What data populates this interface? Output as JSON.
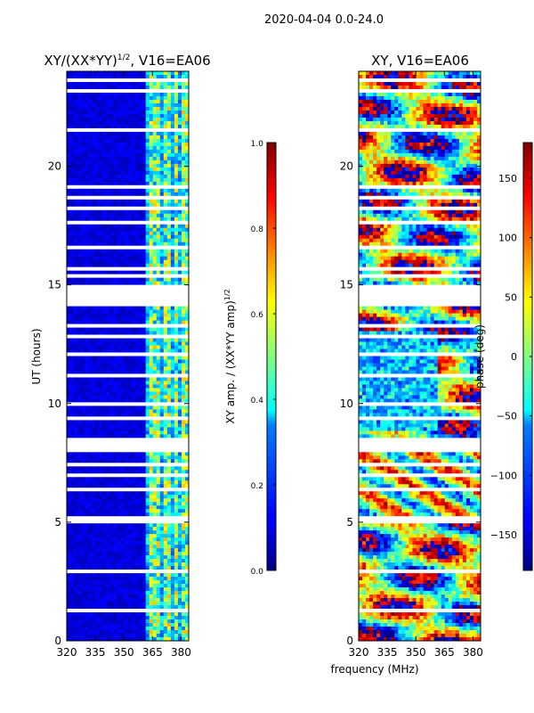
{
  "suptitle": "2020-04-04 0.0-24.0",
  "xlabel_shared": "frequency (MHz)",
  "chart_data": [
    {
      "type": "heatmap",
      "panel": "amplitude",
      "title": "XY/(XX*YY)",
      "title_sup": "1/2",
      "title_suffix": ", V16=EA06",
      "ylabel": "UT (hours)",
      "xlim": [
        320,
        384
      ],
      "ylim": [
        0,
        24
      ],
      "xticks": [
        320,
        335,
        350,
        365,
        380
      ],
      "yticks": [
        0,
        5,
        10,
        15,
        20
      ],
      "colormap": "jet",
      "colorbar": {
        "label": "XY amp. / (XX*YY amp)",
        "label_sup": "1/2",
        "vmin": 0.0,
        "vmax": 1.0,
        "ticks": [
          "0.0",
          "0.2",
          "0.4",
          "0.6",
          "0.8",
          "1.0"
        ]
      }
    },
    {
      "type": "heatmap",
      "panel": "phase",
      "title": "XY, V16=EA06",
      "ylabel": "",
      "xlim": [
        320,
        384
      ],
      "ylim": [
        0,
        24
      ],
      "xticks": [
        320,
        335,
        350,
        365,
        380
      ],
      "yticks": [
        0,
        5,
        10,
        15,
        20
      ],
      "colormap": "jet",
      "colorbar": {
        "label": "phase (deg)",
        "vmin": -180,
        "vmax": 180,
        "ticks": [
          "−150",
          "−100",
          "−50",
          "0",
          "50",
          "100",
          "150"
        ]
      }
    }
  ]
}
